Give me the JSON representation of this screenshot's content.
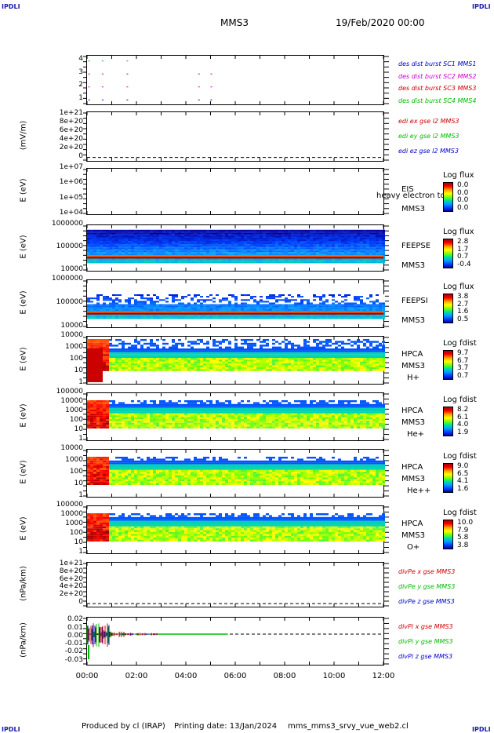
{
  "corners": {
    "tl": "IPDLI",
    "tr": "IPDLI",
    "bl": "IPDLI",
    "br": "IPDLI"
  },
  "header": {
    "spacecraft": "MMS3",
    "date": "19/Feb/2020 00:00"
  },
  "footer": {
    "produced": "Produced by cl (IRAP)",
    "printing": "Printing date: 13/Jan/2024",
    "file": "mms_mms3_srvy_vue_web2.cl"
  },
  "colors": {
    "red": "#cc0000",
    "green": "#00bb00",
    "blue": "#0000cc",
    "magenta": "#cc00cc"
  },
  "chart_data": [
    {
      "type": "scatter",
      "panel": "burst",
      "yticks": [
        "4",
        "3",
        "2",
        "1"
      ],
      "ylim": [
        0.5,
        4.5
      ],
      "legend": [
        {
          "label": "des dist burst SC1 MMS1",
          "color": "#0000cc"
        },
        {
          "label": "des dist burst SC2 MMS2",
          "color": "#cc00cc"
        },
        {
          "label": "des dist burst SC3 MMS3",
          "color": "#cc0000"
        },
        {
          "label": "des dist burst SC4 MMS4",
          "color": "#00bb00"
        }
      ],
      "series": [
        {
          "y": 4,
          "x": [
            0.05,
            0.6,
            1.6
          ]
        },
        {
          "y": 3,
          "x": [
            0.05,
            0.6,
            1.6,
            4.5,
            5.0
          ]
        },
        {
          "y": 2,
          "x": [
            0.05,
            0.6,
            1.6,
            4.5,
            5.0
          ]
        },
        {
          "y": 1,
          "x": [
            0.05,
            0.6,
            1.6,
            4.5,
            5.0
          ]
        }
      ]
    },
    {
      "type": "line",
      "panel": "edi",
      "ylabel": "(mV/m)",
      "yticks": [
        "1e+21",
        "8e+20",
        "6e+20",
        "4e+20",
        "2e+20",
        "0"
      ],
      "legend": [
        {
          "label": "edi ex gse l2 MMS3",
          "color": "#cc0000"
        },
        {
          "label": "edi ey gse l2 MMS3",
          "color": "#00bb00"
        },
        {
          "label": "edi ez gse l2 MMS3",
          "color": "#0000cc"
        }
      ]
    },
    {
      "type": "heatmap",
      "panel": "eis",
      "ylabel": "E (eV)",
      "yticks": [
        "1e+07",
        "1e+06",
        "1e+05",
        "1e+04"
      ],
      "instrument": [
        "EIS",
        "MMS3"
      ],
      "overlay": "heavy electron tof",
      "cbtitle": "Log flux",
      "cbvals": [
        "0.0",
        "0.0",
        "0.0",
        "0.0"
      ]
    },
    {
      "type": "heatmap",
      "panel": "feepse",
      "ylabel": "E (eV)",
      "yticks": [
        "1000000",
        "100000",
        "10000"
      ],
      "instrument": [
        "FEEPSE",
        "MMS3"
      ],
      "cbtitle": "Log flux",
      "cbvals": [
        "2.8",
        "1.7",
        "0.7",
        "-0.4"
      ]
    },
    {
      "type": "heatmap",
      "panel": "feepsi",
      "ylabel": "E (eV)",
      "yticks": [
        "1000000",
        "100000",
        "10000"
      ],
      "instrument": [
        "FEEPSI",
        "MMS3"
      ],
      "cbtitle": "Log flux",
      "cbvals": [
        "3.8",
        "2.7",
        "1.6",
        "0.5"
      ]
    },
    {
      "type": "heatmap",
      "panel": "hpca_h",
      "ylabel": "E (eV)",
      "yticks": [
        "10000",
        "1000",
        "100",
        "10",
        "1"
      ],
      "instrument": [
        "HPCA",
        "MMS3",
        "H+"
      ],
      "cbtitle": "Log fdist",
      "cbvals": [
        "9.7",
        "6.7",
        "3.7",
        "0.7"
      ]
    },
    {
      "type": "heatmap",
      "panel": "hpca_he",
      "ylabel": "E (eV)",
      "yticks": [
        "100000",
        "10000",
        "1000",
        "100",
        "10",
        "1"
      ],
      "instrument": [
        "HPCA",
        "MMS3",
        "He+"
      ],
      "cbtitle": "Log fdist",
      "cbvals": [
        "8.2",
        "6.1",
        "4.0",
        "1.9"
      ]
    },
    {
      "type": "heatmap",
      "panel": "hpca_hepp",
      "ylabel": "E (eV)",
      "yticks": [
        "10000",
        "1000",
        "100",
        "10",
        "1"
      ],
      "instrument": [
        "HPCA",
        "MMS3",
        "He++"
      ],
      "cbtitle": "Log fdist",
      "cbvals": [
        "9.0",
        "6.5",
        "4.1",
        "1.6"
      ]
    },
    {
      "type": "heatmap",
      "panel": "hpca_o",
      "ylabel": "E (eV)",
      "yticks": [
        "100000",
        "10000",
        "1000",
        "100",
        "10",
        "1"
      ],
      "instrument": [
        "HPCA",
        "MMS3",
        "O+"
      ],
      "cbtitle": "Log fdist",
      "cbvals": [
        "10.0",
        "7.9",
        "5.8",
        "3.8"
      ]
    },
    {
      "type": "line",
      "panel": "divpe",
      "ylabel": "(nPa/km)",
      "yticks": [
        "1e+21",
        "8e+20",
        "6e+20",
        "4e+20",
        "2e+20",
        "0"
      ],
      "legend": [
        {
          "label": "divPe x gse MMS3",
          "color": "#cc0000"
        },
        {
          "label": "divPe y gse MMS3",
          "color": "#00bb00"
        },
        {
          "label": "divPe z gse MMS3",
          "color": "#0000cc"
        }
      ]
    },
    {
      "type": "line",
      "panel": "divpi",
      "ylabel": "(nPa/km)",
      "yticks": [
        "0.02",
        "0.01",
        "0.00",
        "-0.01",
        "-0.02",
        "-0.03"
      ],
      "legend": [
        {
          "label": "divPi x gse MMS3",
          "color": "#cc0000"
        },
        {
          "label": "divPi y gse MMS3",
          "color": "#00bb00"
        },
        {
          "label": "divPi z gse MMS3",
          "color": "#0000cc"
        }
      ]
    }
  ],
  "xticks": [
    "00:00",
    "02:00",
    "04:00",
    "06:00",
    "08:00",
    "10:00",
    "12:00"
  ]
}
